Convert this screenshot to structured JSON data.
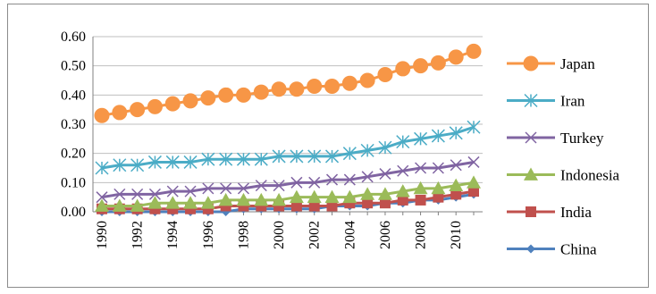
{
  "chart_data": {
    "type": "line",
    "title": "",
    "xlabel": "",
    "ylabel": "",
    "x": [
      1990,
      1991,
      1992,
      1993,
      1994,
      1995,
      1996,
      1997,
      1998,
      1999,
      2000,
      2001,
      2002,
      2003,
      2004,
      2005,
      2006,
      2007,
      2008,
      2009,
      2010,
      2011
    ],
    "x_tick_labels": [
      "1990",
      "1992",
      "1994",
      "1996",
      "1998",
      "2000",
      "2002",
      "2004",
      "2006",
      "2008",
      "2010"
    ],
    "y_tick_labels": [
      "0.60",
      "0.50",
      "0.40",
      "0.30",
      "0.20",
      "0.10",
      "0.00"
    ],
    "ylim": [
      0,
      0.6
    ],
    "grid": true,
    "legend_position": "right",
    "series": [
      {
        "name": "Japan",
        "color": "#f79646",
        "marker": "circle",
        "values": [
          0.33,
          0.34,
          0.35,
          0.36,
          0.37,
          0.38,
          0.39,
          0.4,
          0.4,
          0.41,
          0.42,
          0.42,
          0.43,
          0.43,
          0.44,
          0.45,
          0.47,
          0.49,
          0.5,
          0.51,
          0.53,
          0.55
        ]
      },
      {
        "name": "Iran",
        "color": "#4bacc6",
        "marker": "asterisk",
        "values": [
          0.15,
          0.16,
          0.16,
          0.17,
          0.17,
          0.17,
          0.18,
          0.18,
          0.18,
          0.18,
          0.19,
          0.19,
          0.19,
          0.19,
          0.2,
          0.21,
          0.22,
          0.24,
          0.25,
          0.26,
          0.27,
          0.29
        ]
      },
      {
        "name": "Turkey",
        "color": "#8064a2",
        "marker": "x",
        "values": [
          0.05,
          0.06,
          0.06,
          0.06,
          0.07,
          0.07,
          0.08,
          0.08,
          0.08,
          0.09,
          0.09,
          0.1,
          0.1,
          0.11,
          0.11,
          0.12,
          0.13,
          0.14,
          0.15,
          0.15,
          0.16,
          0.17
        ]
      },
      {
        "name": "Indonesia",
        "color": "#9bbb59",
        "marker": "triangle",
        "values": [
          0.02,
          0.02,
          0.02,
          0.03,
          0.03,
          0.03,
          0.03,
          0.04,
          0.04,
          0.04,
          0.04,
          0.05,
          0.05,
          0.05,
          0.05,
          0.06,
          0.06,
          0.07,
          0.08,
          0.08,
          0.09,
          0.1
        ]
      },
      {
        "name": "India",
        "color": "#c0504d",
        "marker": "square",
        "values": [
          0.01,
          0.01,
          0.01,
          0.01,
          0.01,
          0.01,
          0.01,
          0.02,
          0.02,
          0.02,
          0.02,
          0.02,
          0.02,
          0.02,
          0.03,
          0.03,
          0.03,
          0.04,
          0.04,
          0.05,
          0.06,
          0.07
        ]
      },
      {
        "name": "China",
        "color": "#4f81bd",
        "marker": "diamond",
        "values": [
          0.0,
          0.0,
          0.0,
          0.0,
          0.0,
          0.0,
          0.0,
          0.0,
          0.01,
          0.01,
          0.01,
          0.01,
          0.01,
          0.02,
          0.02,
          0.02,
          0.03,
          0.03,
          0.04,
          0.04,
          0.05,
          0.06
        ]
      }
    ]
  }
}
